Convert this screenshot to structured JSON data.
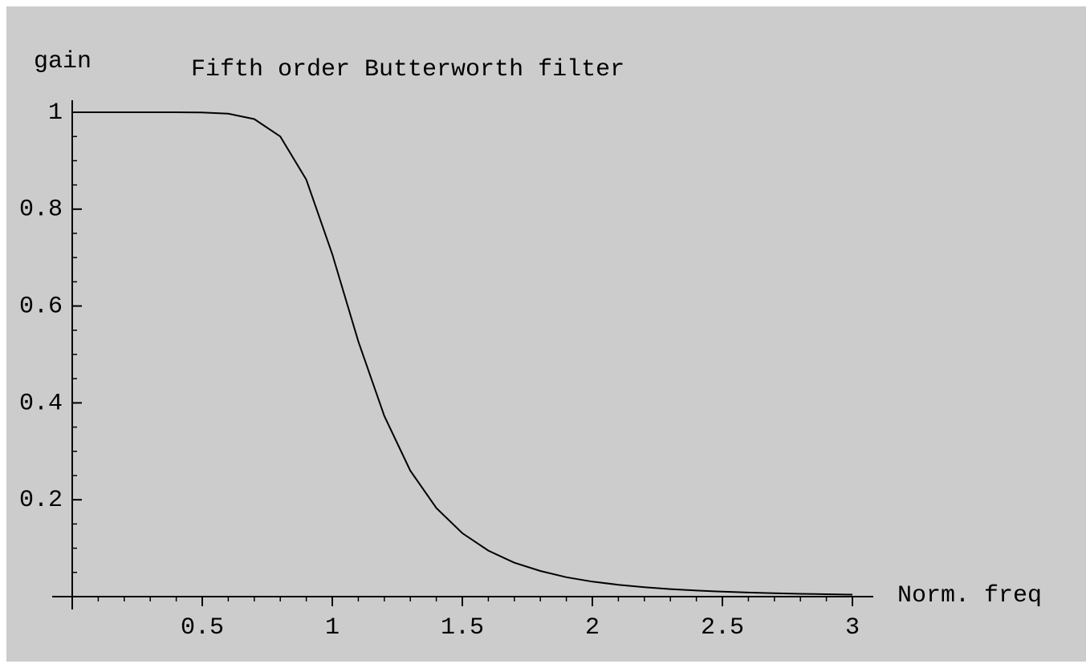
{
  "chart_data": {
    "type": "line",
    "title": "Fifth order Butterworth filter",
    "xlabel": "Norm. freq",
    "ylabel": "gain",
    "x": [
      0,
      0.1,
      0.2,
      0.3,
      0.4,
      0.5,
      0.6,
      0.7,
      0.8,
      0.9,
      1.0,
      1.1,
      1.2,
      1.3,
      1.4,
      1.5,
      1.6,
      1.7,
      1.8,
      1.9,
      2.0,
      2.1,
      2.2,
      2.3,
      2.4,
      2.5,
      2.6,
      2.7,
      2.8,
      2.9,
      3.0
    ],
    "series": [
      {
        "name": "gain",
        "color": "#000000",
        "values": [
          1,
          1,
          1,
          1,
          1,
          0.9995,
          0.997,
          0.986,
          0.95,
          0.861,
          0.707,
          0.527,
          0.373,
          0.26,
          0.183,
          0.131,
          0.095,
          0.07,
          0.053,
          0.04,
          0.031,
          0.0245,
          0.0194,
          0.0155,
          0.0126,
          0.0102,
          0.0084,
          0.007,
          0.0058,
          0.0049,
          0.0041
        ]
      }
    ],
    "xlim": [
      0,
      3
    ],
    "xticks": [
      0.5,
      1,
      1.5,
      2,
      2.5,
      3
    ],
    "ylim": [
      0,
      1
    ],
    "yticks": [
      0.2,
      0.4,
      0.6,
      0.8,
      1
    ],
    "grid": false
  }
}
